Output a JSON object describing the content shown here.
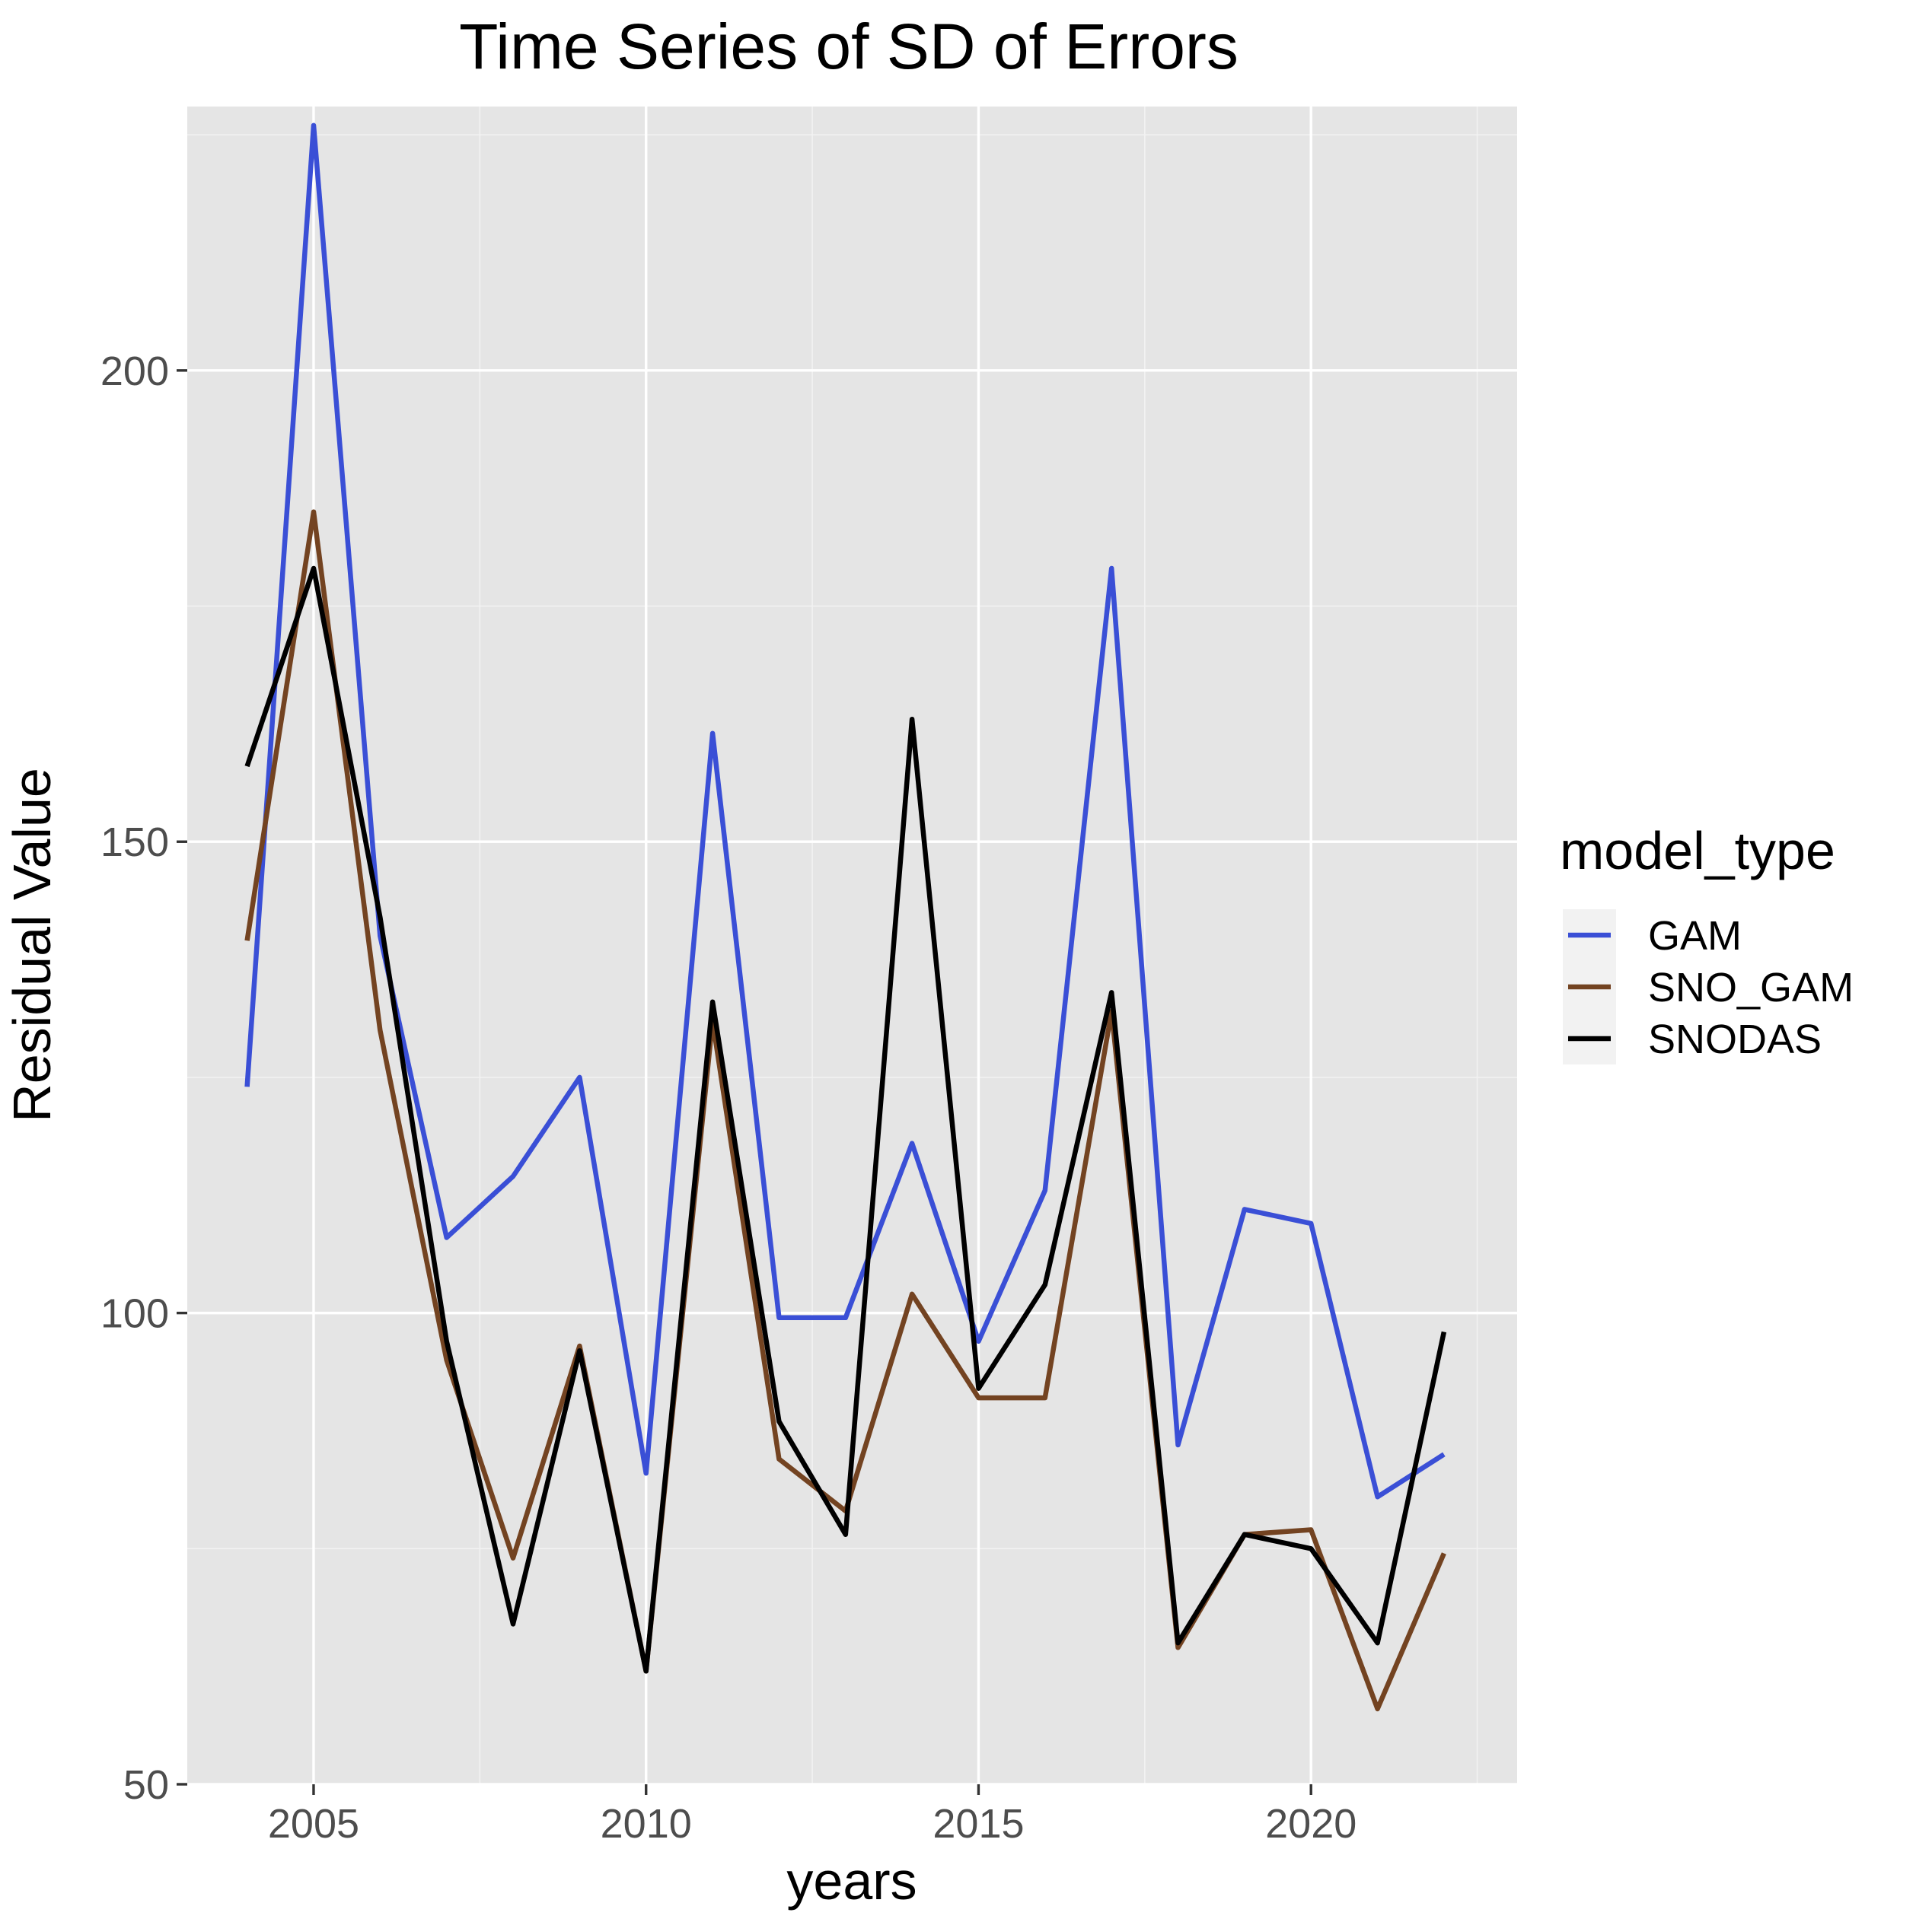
{
  "chart_data": {
    "type": "line",
    "title": "Time Series of SD of Errors",
    "xlabel": "years",
    "ylabel": "Residual Value",
    "xlim": [
      2003.1,
      2023.1
    ],
    "ylim": [
      50,
      228
    ],
    "x_ticks": [
      2005,
      2010,
      2015,
      2020
    ],
    "x_tick_labels": [
      "2005",
      "2010",
      "2015",
      "2020"
    ],
    "y_ticks": [
      50,
      100,
      150,
      200
    ],
    "y_tick_labels": [
      "50",
      "100",
      "150",
      "200"
    ],
    "x_minor_ticks": [
      2007.5,
      2012.5,
      2017.5,
      2022.5
    ],
    "y_minor_ticks": [
      75,
      125,
      175,
      225
    ],
    "grid": true,
    "legend": {
      "title": "model_type",
      "position": "right"
    },
    "x": [
      2004,
      2005,
      2006,
      2007,
      2008,
      2009,
      2010,
      2011,
      2012,
      2013,
      2014,
      2015,
      2016,
      2017,
      2018,
      2019,
      2020,
      2021,
      2022
    ],
    "series": [
      {
        "name": "GAM",
        "color": "#3a4fd6",
        "values": [
          124,
          226,
          140,
          108,
          114.5,
          125,
          83,
          161.5,
          99.5,
          99.5,
          118,
          97,
          113,
          179,
          86,
          111,
          109.5,
          80.5,
          85
        ]
      },
      {
        "name": "SNO_GAM",
        "color": "#734321",
        "values": [
          139.5,
          185,
          130,
          95,
          74,
          96.5,
          62,
          131,
          84.5,
          79,
          102,
          91,
          91,
          132,
          64.5,
          76.5,
          77,
          58,
          74.5
        ]
      },
      {
        "name": "SNODAS",
        "color": "#000000",
        "values": [
          158,
          179,
          142,
          97,
          67,
          96,
          62,
          133,
          88.5,
          76.5,
          163,
          92,
          103,
          134,
          65,
          76.5,
          75,
          65,
          98
        ]
      }
    ]
  }
}
